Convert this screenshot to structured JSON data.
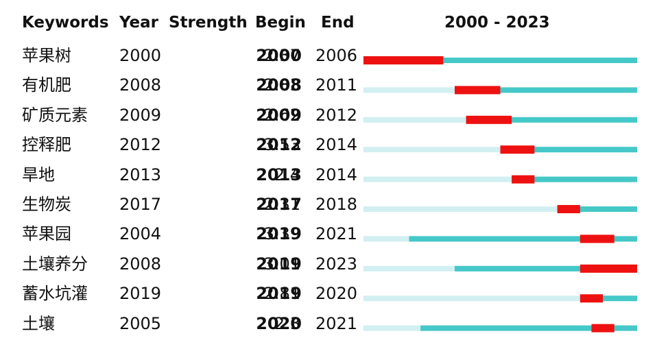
{
  "headers": {
    "keywords": "Keywords",
    "year": "Year",
    "strength": "Strength",
    "begin": "Begin",
    "end": "End",
    "range": "2000 - 2023"
  },
  "colors": {
    "burst": "#ee1111",
    "active": "#45c8c8",
    "inactive": "#d2eff1"
  },
  "chart_data": {
    "type": "burst-timeline",
    "range_start": 2000,
    "range_end": 2023,
    "rows": [
      {
        "keyword": "苹果树",
        "year": "2000",
        "strength": "2.37",
        "begin": "2000",
        "end": "2006"
      },
      {
        "keyword": "有机肥",
        "year": "2008",
        "strength": "2.83",
        "begin": "2008",
        "end": "2011"
      },
      {
        "keyword": "矿质元素",
        "year": "2009",
        "strength": "2.62",
        "begin": "2009",
        "end": "2012"
      },
      {
        "keyword": "控释肥",
        "year": "2012",
        "strength": "3.53",
        "begin": "2012",
        "end": "2014"
      },
      {
        "keyword": "旱地",
        "year": "2013",
        "strength": "2.4",
        "begin": "2013",
        "end": "2014"
      },
      {
        "keyword": "生物炭",
        "year": "2017",
        "strength": "2.31",
        "begin": "2017",
        "end": "2018"
      },
      {
        "keyword": "苹果园",
        "year": "2004",
        "strength": "3.39",
        "begin": "2019",
        "end": "2021"
      },
      {
        "keyword": "土壤养分",
        "year": "2008",
        "strength": "3.01",
        "begin": "2019",
        "end": "2023"
      },
      {
        "keyword": "蓄水坑灌",
        "year": "2019",
        "strength": "2.81",
        "begin": "2019",
        "end": "2020"
      },
      {
        "keyword": "土壤",
        "year": "2005",
        "strength": "2.3",
        "begin": "2020",
        "end": "2021"
      }
    ]
  }
}
